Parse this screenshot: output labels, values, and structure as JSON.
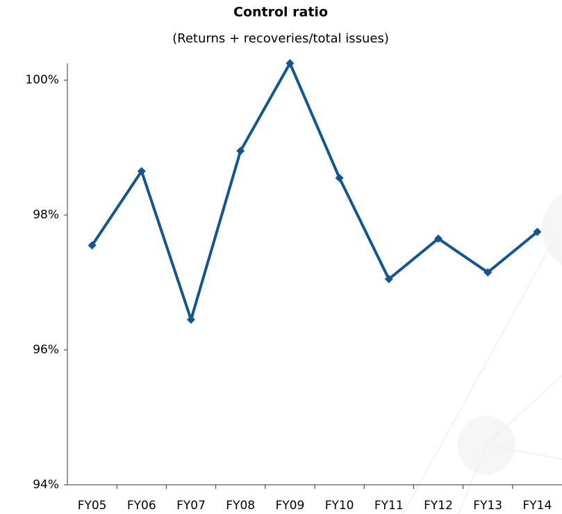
{
  "chart_data": {
    "type": "line",
    "title": "Control ratio",
    "subtitle": "(Returns + recoveries/total issues)",
    "categories": [
      "FY05",
      "FY06",
      "FY07",
      "FY08",
      "FY09",
      "FY10",
      "FY11",
      "FY12",
      "FY13",
      "FY14"
    ],
    "series": [
      {
        "color": "#13568f",
        "values": [
          97.55,
          98.65,
          96.45,
          98.95,
          100.25,
          98.55,
          97.05,
          97.65,
          97.15,
          97.75
        ]
      }
    ],
    "ylim": [
      94,
      100.25
    ],
    "yticks": [
      {
        "value": 94,
        "label": "94%"
      },
      {
        "value": 96,
        "label": "96%"
      },
      {
        "value": 98,
        "label": "98%"
      },
      {
        "value": 100,
        "label": "100%"
      }
    ],
    "grid": false
  }
}
